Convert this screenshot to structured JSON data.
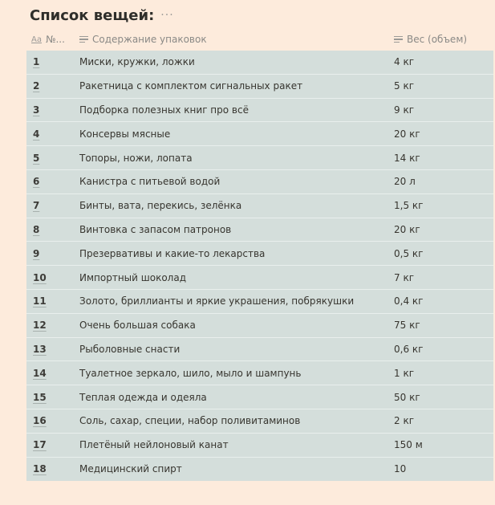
{
  "page": {
    "title": "Список вещей:",
    "more_label": "···"
  },
  "table": {
    "headers": {
      "number": "№...",
      "number_icon": "Aa",
      "content": "Содержание упаковок",
      "weight": "Вес (объем)"
    },
    "rows": [
      {
        "number": "1",
        "content": "Миски, кружки, ложки",
        "weight": "4 кг"
      },
      {
        "number": "2",
        "content": "Ракетница с комплектом сигнальных ракет",
        "weight": "5 кг"
      },
      {
        "number": "3",
        "content": "Подборка полезных книг про всё",
        "weight": "9 кг"
      },
      {
        "number": "4",
        "content": "Консервы мясные",
        "weight": "20 кг"
      },
      {
        "number": "5",
        "content": "Топоры, ножи, лопата",
        "weight": "14 кг"
      },
      {
        "number": "6",
        "content": "Канистра с питьевой водой",
        "weight": "20 л"
      },
      {
        "number": "7",
        "content": "Бинты, вата, перекись, зелёнка",
        "weight": "1,5 кг"
      },
      {
        "number": "8",
        "content": "Винтовка с запасом патронов",
        "weight": "20 кг"
      },
      {
        "number": "9",
        "content": "Презервативы и какие-то лекарства",
        "weight": "0,5 кг"
      },
      {
        "number": "10",
        "content": "Импортный шоколад",
        "weight": "7 кг"
      },
      {
        "number": "11",
        "content": "Золото, бриллианты и яркие украшения, побрякушки",
        "weight": "0,4 кг"
      },
      {
        "number": "12",
        "content": "Очень большая собака",
        "weight": "75 кг"
      },
      {
        "number": "13",
        "content": "Рыболовные снасти",
        "weight": "0,6 кг"
      },
      {
        "number": "14",
        "content": "Туалетное зеркало, шило, мыло и шампунь",
        "weight": "1 кг"
      },
      {
        "number": "15",
        "content": "Теплая одежда и одеяла",
        "weight": "50 кг"
      },
      {
        "number": "16",
        "content": "Соль, сахар, специи, набор поливитаминов",
        "weight": "2 кг"
      },
      {
        "number": "17",
        "content": "Плетёный нейлоновый канат",
        "weight": "150 м"
      },
      {
        "number": "18",
        "content": "Медицинский спирт",
        "weight": "10"
      }
    ]
  },
  "colors": {
    "page_background": "#fdebdc",
    "table_background": "#d4dedb",
    "text": "#37352f",
    "header_text": "#8a8986"
  }
}
